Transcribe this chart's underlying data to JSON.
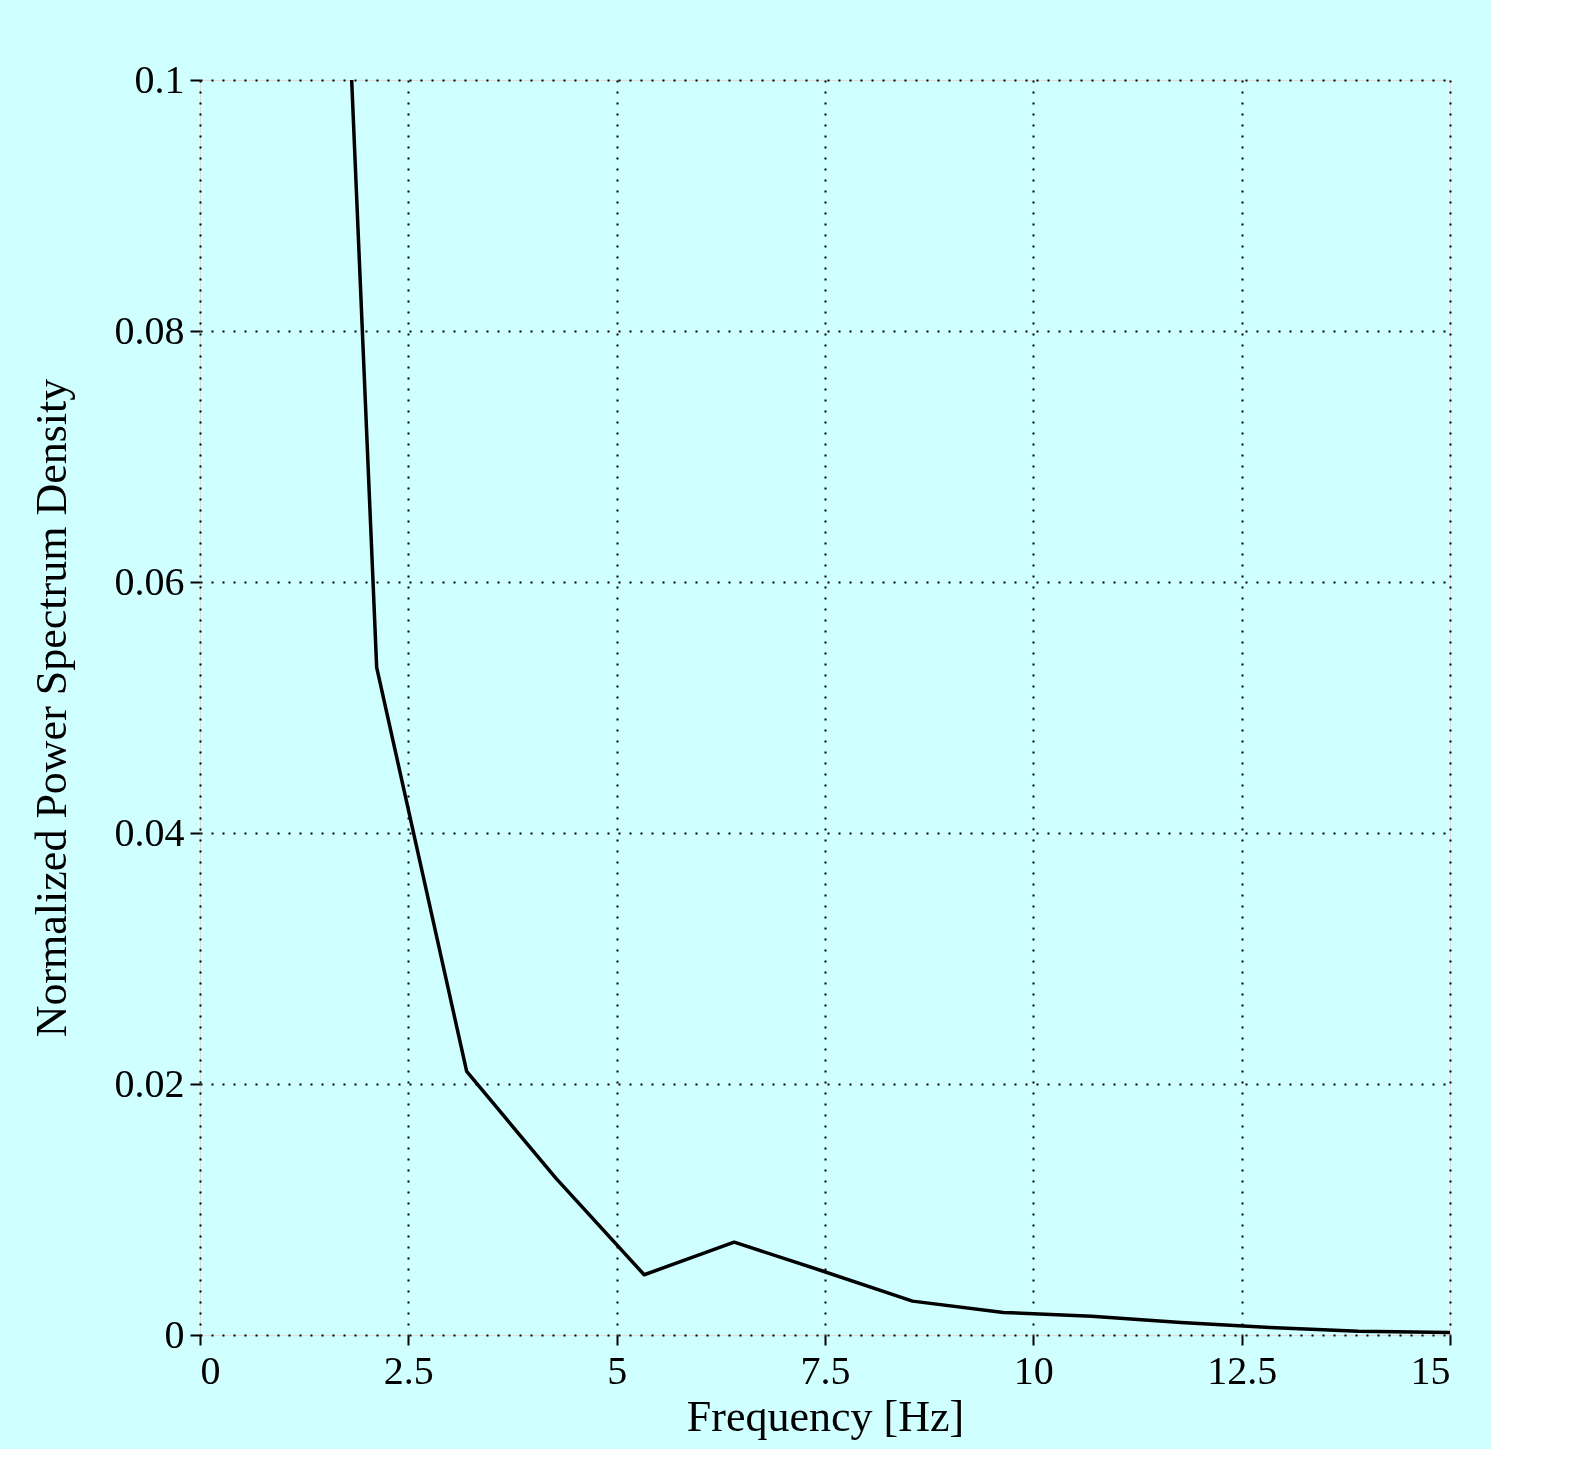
{
  "chart_data": {
    "type": "line",
    "xlabel": "Frequency [Hz]",
    "ylabel": "Normalized Power Spectrum Density",
    "x": [
      1.82,
      2.12,
      3.2,
      4.27,
      5.33,
      6.41,
      7.47,
      8.55,
      9.64,
      10.7,
      11.77,
      12.84,
      13.9,
      15
    ],
    "series": [
      {
        "color": "#000000",
        "values": [
          0.1,
          0.0532,
          0.021,
          0.0125,
          0.0048,
          0.0074,
          0.0051,
          0.0027,
          0.0018,
          0.0015,
          0.001,
          0.0006,
          0.0003,
          0.0002
        ]
      }
    ],
    "xlim": [
      0,
      15
    ],
    "xticks": [
      0,
      2.5,
      5,
      7.5,
      10,
      12.5,
      15
    ],
    "ylim": [
      0,
      0.1
    ],
    "yticks": [
      0,
      0.02,
      0.04,
      0.06,
      0.08,
      0.1
    ],
    "grid": true,
    "line_style": "solid",
    "marker": "none"
  }
}
